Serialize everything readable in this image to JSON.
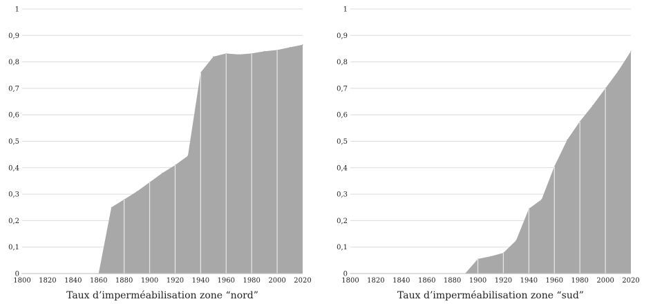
{
  "chart_data": [
    {
      "type": "area",
      "title": "Taux d’imperméabilisation zone “nord”",
      "x": [
        1800,
        1860,
        1870,
        1880,
        1890,
        1900,
        1910,
        1920,
        1930,
        1940,
        1950,
        1960,
        1970,
        1980,
        1990,
        2000,
        2010,
        2020
      ],
      "series": [
        {
          "values": [
            0,
            0,
            0.25,
            0.28,
            0.31,
            0.345,
            0.38,
            0.41,
            0.445,
            0.76,
            0.82,
            0.832,
            0.828,
            0.832,
            0.84,
            0.845,
            0.855,
            0.865
          ]
        }
      ],
      "xlim": [
        1800,
        2020
      ],
      "ylim": [
        0,
        1
      ],
      "xticks": [
        1800,
        1820,
        1840,
        1860,
        1880,
        1900,
        1920,
        1940,
        1960,
        1980,
        2000,
        2020
      ],
      "yticks": [
        "0",
        "0,1",
        "0,2",
        "0,3",
        "0,4",
        "0,5",
        "0,6",
        "0,7",
        "0,8",
        "0,9",
        "1"
      ],
      "grid": true,
      "fill_color": "#a8a8a8",
      "separator_color": "#e8e8e8"
    },
    {
      "type": "area",
      "title": "Taux d’imperméabilisation zone “sud”",
      "x": [
        1800,
        1890,
        1900,
        1910,
        1920,
        1930,
        1940,
        1950,
        1960,
        1970,
        1980,
        1990,
        2000,
        2010,
        2020
      ],
      "series": [
        {
          "values": [
            0,
            0,
            0.055,
            0.065,
            0.078,
            0.125,
            0.245,
            0.28,
            0.405,
            0.505,
            0.575,
            0.635,
            0.7,
            0.765,
            0.84
          ]
        }
      ],
      "xlim": [
        1800,
        2020
      ],
      "ylim": [
        0,
        1
      ],
      "xticks": [
        1800,
        1820,
        1840,
        1860,
        1880,
        1900,
        1920,
        1940,
        1960,
        1980,
        2000,
        2020
      ],
      "yticks": [
        "0",
        "0,1",
        "0,2",
        "0,3",
        "0,4",
        "0,5",
        "0,6",
        "0,7",
        "0,8",
        "0,9",
        "1"
      ],
      "grid": true,
      "fill_color": "#a8a8a8",
      "separator_color": "#e8e8e8"
    }
  ]
}
